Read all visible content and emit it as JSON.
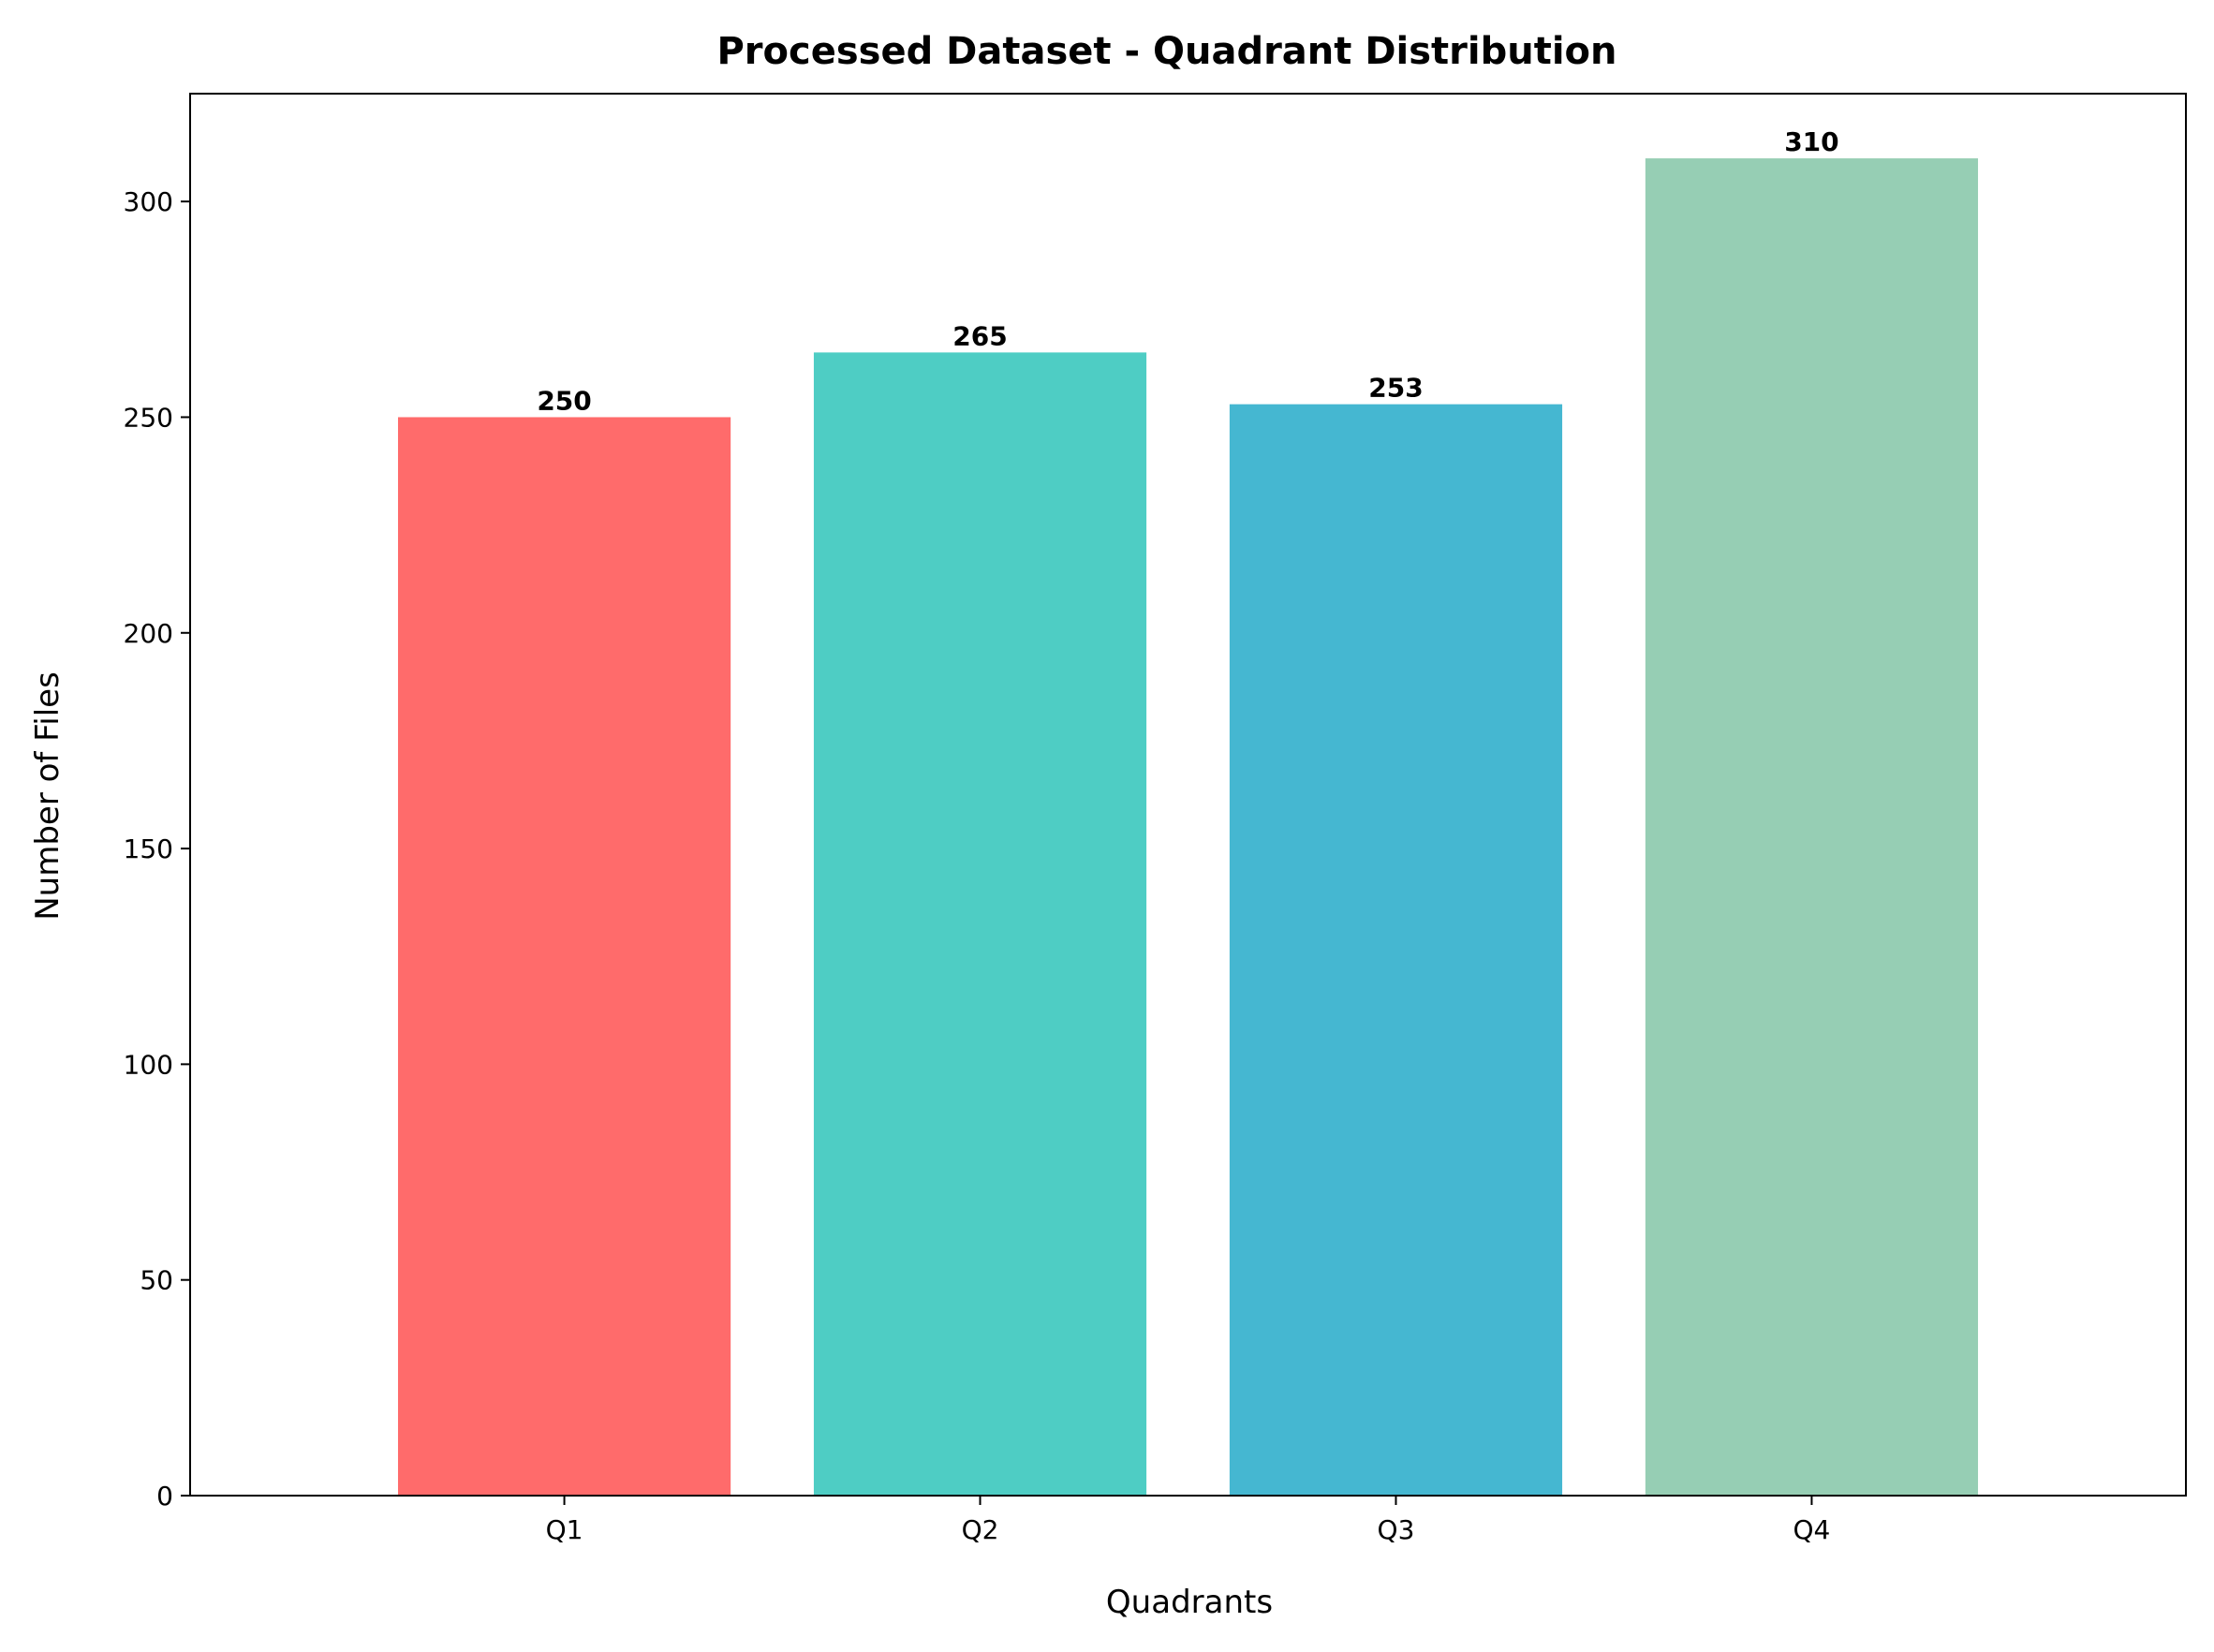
{
  "chart_data": {
    "type": "bar",
    "title": "Processed Dataset - Quadrant Distribution",
    "xlabel": "Quadrants",
    "ylabel": "Number of Files",
    "categories": [
      "Q1",
      "Q2",
      "Q3",
      "Q4"
    ],
    "values": [
      250,
      265,
      253,
      310
    ],
    "colors": [
      "#FF6B6B",
      "#4ECDC4",
      "#45B7D1",
      "#96CEB4"
    ],
    "ylim": [
      0,
      325
    ],
    "yticks": [
      0,
      50,
      100,
      150,
      200,
      250,
      300
    ],
    "grid": false,
    "legend": false
  }
}
